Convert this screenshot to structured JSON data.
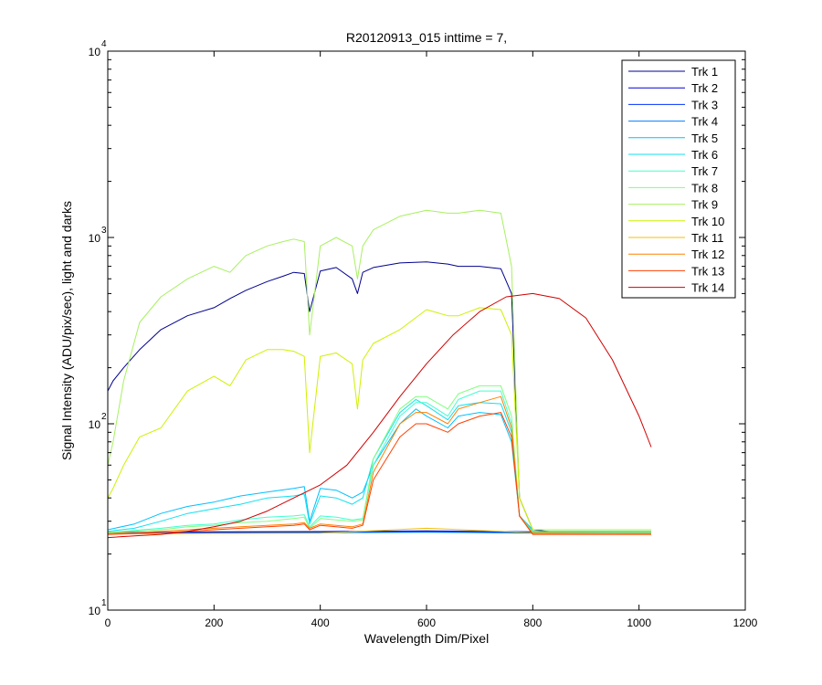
{
  "chart_data": {
    "type": "line",
    "title": "R20120913_015 inttime = 7,",
    "xlabel": "Wavelength Dim/Pixel",
    "ylabel": "Signal Intensity (ADU/pix/sec), light and darks",
    "xlim": [
      0,
      1200
    ],
    "ylim": [
      10,
      10000
    ],
    "yscale": "log",
    "grid": false,
    "legend_position": "top-right",
    "x_ticks": [
      "0",
      "200",
      "400",
      "600",
      "800",
      "1000",
      "1200"
    ],
    "y_ticks": [
      {
        "base": "10",
        "exp": "1",
        "value": 10
      },
      {
        "base": "10",
        "exp": "2",
        "value": 100
      },
      {
        "base": "10",
        "exp": "3",
        "value": 1000
      },
      {
        "base": "10",
        "exp": "4",
        "value": 10000
      }
    ],
    "series": [
      {
        "name": "Trk 1",
        "color": "#00008f",
        "x": [
          0,
          10,
          30,
          60,
          100,
          150,
          200,
          230,
          260,
          300,
          330,
          350,
          370,
          380,
          400,
          430,
          460,
          470,
          480,
          500,
          550,
          600,
          640,
          660,
          700,
          740,
          760,
          775,
          800,
          850,
          900,
          1000,
          1023
        ],
        "y": [
          150,
          170,
          200,
          250,
          320,
          380,
          420,
          470,
          520,
          580,
          620,
          650,
          640,
          400,
          660,
          690,
          600,
          500,
          650,
          690,
          730,
          740,
          720,
          700,
          700,
          680,
          500,
          40,
          27,
          26,
          26,
          26,
          26
        ]
      },
      {
        "name": "Trk 2",
        "color": "#0000d0",
        "x": [
          0,
          100,
          200,
          400,
          600,
          800,
          1023
        ],
        "y": [
          26.2,
          26.2,
          26.3,
          26.4,
          26.6,
          26.3,
          26.2
        ]
      },
      {
        "name": "Trk 3",
        "color": "#0030ff",
        "x": [
          0,
          100,
          200,
          400,
          600,
          800,
          1023
        ],
        "y": [
          26.0,
          26.0,
          26.1,
          26.2,
          26.4,
          26.1,
          26.0
        ]
      },
      {
        "name": "Trk 4",
        "color": "#0080ff",
        "x": [
          0,
          100,
          200,
          400,
          600,
          800,
          1023
        ],
        "y": [
          25.8,
          25.8,
          25.9,
          26.0,
          26.2,
          25.9,
          25.8
        ]
      },
      {
        "name": "Trk 5",
        "color": "#00c0ff",
        "x": [
          0,
          50,
          100,
          150,
          200,
          250,
          300,
          350,
          370,
          380,
          400,
          430,
          460,
          480,
          500,
          550,
          580,
          600,
          640,
          660,
          700,
          740,
          760,
          775,
          800,
          1023
        ],
        "y": [
          27,
          29,
          33,
          36,
          38,
          41,
          43,
          45,
          46,
          30,
          45,
          44,
          40,
          43,
          60,
          100,
          120,
          110,
          95,
          110,
          115,
          112,
          80,
          32,
          27,
          27
        ]
      },
      {
        "name": "Trk 6",
        "color": "#10e0f0",
        "x": [
          0,
          50,
          100,
          150,
          200,
          250,
          300,
          350,
          370,
          380,
          400,
          430,
          460,
          480,
          500,
          550,
          580,
          600,
          640,
          660,
          700,
          740,
          760,
          775,
          800,
          1023
        ],
        "y": [
          26.5,
          27.5,
          30,
          33,
          35,
          37,
          40,
          41,
          42,
          29,
          41,
          40,
          37,
          40,
          65,
          115,
          135,
          125,
          105,
          125,
          130,
          128,
          90,
          32,
          26.5,
          26.5
        ]
      },
      {
        "name": "Trk 7",
        "color": "#40ffd0",
        "x": [
          0,
          50,
          100,
          150,
          200,
          250,
          300,
          350,
          370,
          380,
          400,
          430,
          460,
          480,
          500,
          550,
          580,
          600,
          640,
          660,
          700,
          740,
          760,
          775,
          800,
          1023
        ],
        "y": [
          26.2,
          26.8,
          27.5,
          28.5,
          29,
          30.5,
          31.5,
          32,
          32.5,
          28,
          32,
          31.5,
          30.5,
          31,
          60,
          110,
          130,
          130,
          110,
          135,
          150,
          150,
          100,
          32,
          26.2,
          26.2
        ]
      },
      {
        "name": "Trk 8",
        "color": "#80ff80",
        "x": [
          0,
          50,
          100,
          150,
          200,
          250,
          300,
          350,
          370,
          380,
          400,
          430,
          460,
          480,
          500,
          550,
          580,
          600,
          640,
          660,
          700,
          740,
          760,
          775,
          800,
          1023
        ],
        "y": [
          26,
          26.5,
          27,
          28,
          28.5,
          29.5,
          30,
          31,
          31.5,
          27.5,
          31,
          30.5,
          30,
          30.5,
          65,
          120,
          140,
          140,
          120,
          145,
          160,
          160,
          110,
          32,
          26,
          26
        ]
      },
      {
        "name": "Trk 9",
        "color": "#a8f060",
        "x": [
          0,
          10,
          30,
          60,
          100,
          150,
          200,
          230,
          260,
          300,
          330,
          350,
          370,
          380,
          400,
          430,
          460,
          470,
          480,
          500,
          550,
          600,
          640,
          660,
          700,
          740,
          760,
          775,
          800,
          850,
          900,
          1000,
          1023
        ],
        "y": [
          60,
          80,
          170,
          350,
          480,
          600,
          700,
          650,
          800,
          900,
          950,
          980,
          950,
          300,
          900,
          1000,
          900,
          600,
          900,
          1100,
          1300,
          1400,
          1350,
          1350,
          1400,
          1350,
          700,
          40,
          27,
          27,
          27,
          27,
          27
        ]
      },
      {
        "name": "Trk 10",
        "color": "#d0f000",
        "x": [
          0,
          10,
          30,
          60,
          100,
          150,
          200,
          230,
          260,
          300,
          330,
          350,
          370,
          380,
          400,
          430,
          460,
          470,
          480,
          500,
          550,
          600,
          640,
          660,
          700,
          740,
          760,
          775,
          800,
          850,
          900,
          1000,
          1023
        ],
        "y": [
          40,
          45,
          60,
          85,
          95,
          150,
          180,
          160,
          220,
          250,
          250,
          245,
          230,
          70,
          230,
          240,
          210,
          120,
          220,
          270,
          320,
          410,
          380,
          380,
          420,
          410,
          300,
          40,
          27,
          27,
          27,
          27,
          27
        ]
      },
      {
        "name": "Trk 11",
        "color": "#f0c000",
        "x": [
          0,
          100,
          200,
          400,
          600,
          800,
          1023
        ],
        "y": [
          25.7,
          25.7,
          25.8,
          25.9,
          27.5,
          26.0,
          25.7
        ]
      },
      {
        "name": "Trk 12",
        "color": "#ff8000",
        "x": [
          0,
          50,
          100,
          150,
          200,
          250,
          300,
          350,
          370,
          380,
          400,
          430,
          460,
          480,
          500,
          550,
          580,
          600,
          640,
          660,
          700,
          740,
          760,
          775,
          800,
          1023
        ],
        "y": [
          25.8,
          26,
          26.5,
          27,
          27.5,
          28,
          28.5,
          29,
          29.5,
          27.5,
          29,
          28.5,
          28,
          29,
          55,
          100,
          115,
          115,
          100,
          120,
          130,
          140,
          95,
          32,
          25.8,
          25.8
        ]
      },
      {
        "name": "Trk 13",
        "color": "#ff4000",
        "x": [
          0,
          50,
          100,
          150,
          200,
          250,
          300,
          350,
          370,
          380,
          400,
          430,
          460,
          480,
          500,
          550,
          580,
          600,
          640,
          660,
          700,
          740,
          760,
          775,
          800,
          1023
        ],
        "y": [
          25.5,
          25.7,
          26,
          26.5,
          27,
          27.5,
          28,
          28.5,
          29,
          27,
          28.5,
          28,
          27.5,
          28.5,
          50,
          85,
          100,
          100,
          90,
          100,
          110,
          115,
          85,
          32,
          25.5,
          25.5
        ]
      },
      {
        "name": "Trk 14",
        "color": "#d00000",
        "x": [
          0,
          50,
          100,
          150,
          200,
          250,
          300,
          350,
          400,
          450,
          500,
          550,
          600,
          650,
          700,
          750,
          800,
          850,
          900,
          950,
          1000,
          1023
        ],
        "y": [
          24.5,
          25,
          25.5,
          26.5,
          28,
          30,
          34,
          40,
          47,
          60,
          90,
          140,
          210,
          300,
          400,
          480,
          500,
          470,
          370,
          220,
          110,
          75
        ]
      }
    ]
  }
}
